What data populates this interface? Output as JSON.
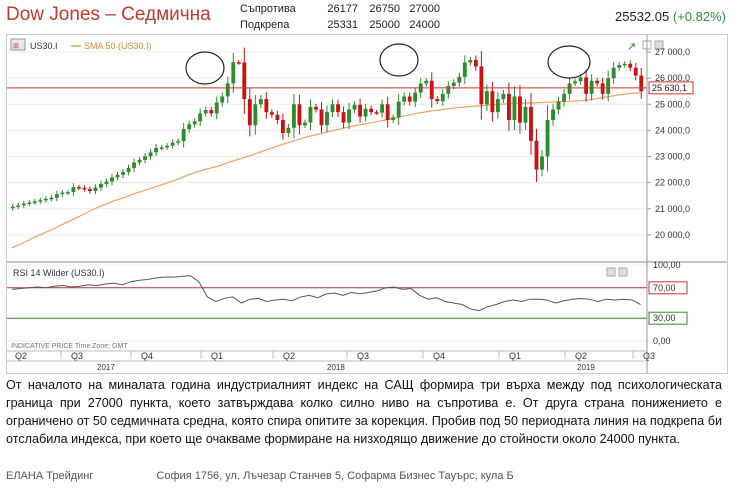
{
  "header": {
    "title": "Dow Jones – Седмична",
    "resistance_label": "Съпротива",
    "support_label": "Подкрепа",
    "resistance_levels": [
      "26177",
      "26750",
      "27000"
    ],
    "support_levels": [
      "25331",
      "25000",
      "24000"
    ],
    "price": "25532.05",
    "change": "(+0.82%)"
  },
  "chart_header": {
    "symbol": "US30.I",
    "sma_label": "SMA 50 (US30.I)",
    "rsi_label": "RSI 14 Wilder (US30.I)",
    "indicative": "INDICATIVE PRICE   Time Zone: GMT"
  },
  "colors": {
    "up": "#2e8b2e",
    "down": "#cc1111",
    "sma": "#f0a060",
    "rsi": "#555555",
    "rsi_upper": "#cc3333",
    "rsi_lower": "#2e8b2e",
    "last_price_line": "#cc3333"
  },
  "chart_data": {
    "type": "candlestick",
    "title": "Dow Jones – Седмична",
    "y_range": [
      19000,
      27500
    ],
    "y_ticks": [
      "27 000,0",
      "26 000,0",
      "25 000,0",
      "24 000,0",
      "23 000,0",
      "22 000,0",
      "21 000,0",
      "20 000,0"
    ],
    "last_price_tag": "25 630,1",
    "quarters": [
      "Q2",
      "Q3",
      "Q4",
      "Q1",
      "Q2",
      "Q3",
      "Q4",
      "Q1",
      "Q2",
      "Q3"
    ],
    "years": [
      "2017",
      "2018",
      "2019"
    ],
    "close": [
      21080,
      21130,
      21200,
      21240,
      21280,
      21330,
      21380,
      21420,
      21560,
      21620,
      21640,
      21830,
      21800,
      21750,
      21680,
      21810,
      21950,
      22040,
      22200,
      22300,
      22410,
      22560,
      22770,
      22870,
      23010,
      23160,
      23330,
      23350,
      23410,
      23530,
      23590,
      24050,
      24230,
      24350,
      24650,
      24780,
      24650,
      25070,
      25300,
      25800,
      26610,
      26600,
      25200,
      24200,
      25000,
      25200,
      24700,
      24600,
      24400,
      23900,
      24100,
      25000,
      24200,
      24300,
      24900,
      24800,
      24200,
      24700,
      25000,
      24700,
      24300,
      24800,
      24980,
      24530,
      24830,
      24700,
      24680,
      25000,
      24400,
      24500,
      25100,
      25300,
      25100,
      25450,
      25800,
      25900,
      25200,
      25120,
      25400,
      25700,
      25830,
      26050,
      26600,
      26700,
      26450,
      25000,
      25500,
      24700,
      25200,
      25400,
      24400,
      25300,
      24300,
      24900,
      23600,
      22500,
      23000,
      24400,
      24800,
      25100,
      25400,
      25800,
      25880,
      26030,
      25400,
      25900,
      25800,
      25400,
      26000,
      26400,
      26500,
      26550,
      26400,
      26100,
      25500
    ],
    "sma": [
      19500,
      19680,
      19870,
      20050,
      20230,
      20420,
      20600,
      20800,
      21000,
      21160,
      21320,
      21450,
      21590,
      21720,
      21850,
      21980,
      22120,
      22280,
      22420,
      22530,
      22630,
      22770,
      22900,
      23020,
      23160,
      23300,
      23430,
      23560,
      23680,
      23790,
      23880,
      23980,
      24070,
      24160,
      24230,
      24300,
      24380,
      24460,
      24550,
      24630,
      24700,
      24760,
      24810,
      24860,
      24900,
      24930,
      24960,
      24990,
      25020,
      25040,
      25050,
      25060,
      25080,
      25100,
      25110,
      25130,
      25170,
      25230,
      25300,
      25370,
      25410,
      25440
    ],
    "rsi_range": [
      0,
      100
    ],
    "rsi_ticks": [
      "100,00",
      "70,00",
      "30,00",
      "0,00"
    ],
    "rsi_upper": 70,
    "rsi_lower": 30,
    "rsi": [
      68,
      69,
      70,
      71,
      70,
      72,
      73,
      71,
      72,
      74,
      73,
      75,
      76,
      74,
      78,
      80,
      81,
      83,
      84,
      84,
      85,
      86,
      78,
      58,
      52,
      56,
      58,
      50,
      55,
      56,
      52,
      54,
      55,
      53,
      58,
      60,
      57,
      62,
      63,
      60,
      64,
      62,
      64,
      66,
      70,
      71,
      68,
      69,
      60,
      55,
      57,
      52,
      50,
      48,
      42,
      40,
      45,
      48,
      52,
      54,
      52,
      55,
      55,
      54,
      50,
      53,
      55,
      56,
      55,
      52,
      55,
      54,
      55,
      54,
      48
    ],
    "annotations": [
      "circle ~Q1 2018 top",
      "circle ~Q3 2018 top",
      "circle ~Q1 2019 top"
    ]
  },
  "paragraph": "От началото на миналата година индустриалният индекс на САЩ формира три върха между под психологическата граница при 27000 пункта, което затвърждава колко силно ниво на съпротива е. От друга страна понижението е ограничено от 50 седмичната средна, която спира опитите за корекция. Пробив под 50 периодната линия на подкрепа би отслабила индекса, при което ще очакваме формиране на низходящо движение до стойности около 24000 пункта.",
  "footer": {
    "company": "ЕЛАНА Трейдинг",
    "address": "София 1756, ул. Лъчезар Станчев 5, Софарма Бизнес Тауърс, кула Б"
  }
}
